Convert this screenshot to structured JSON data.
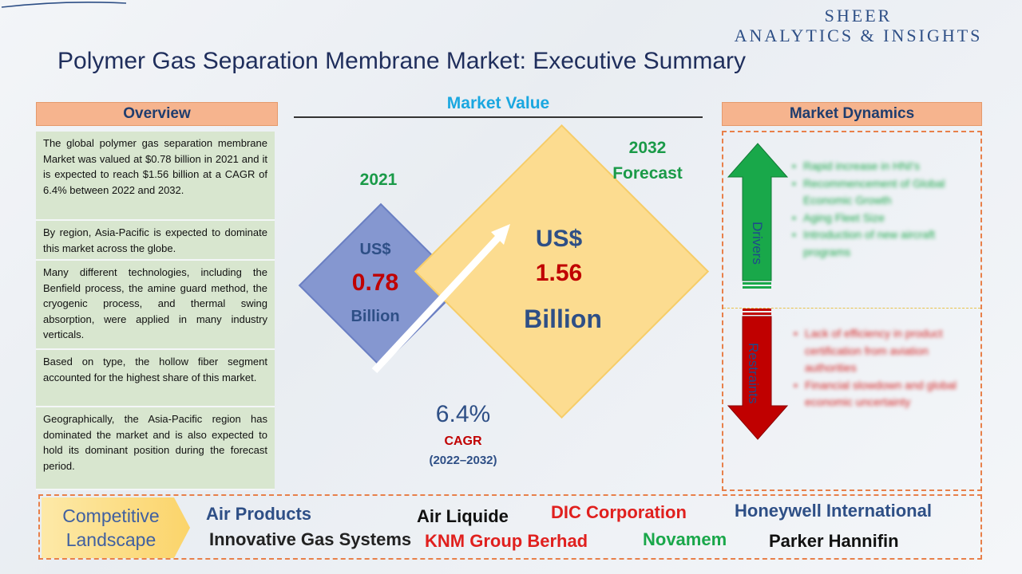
{
  "brand": {
    "line1": "SHEER",
    "line2": "ANALYTICS & INSIGHTS"
  },
  "title": "Polymer Gas Separation Membrane Market: Executive Summary",
  "overview": {
    "heading": "Overview",
    "items": [
      "The global polymer gas separation membrane Market was valued at $0.78 billion in 2021 and it is expected to reach $1.56 billion at a CAGR of 6.4% between 2022 and 2032.",
      "By region, Asia-Pacific is expected to dominate this market across the globe.",
      "Many different technologies, including the Benfield process, the amine guard method, the cryogenic process, and thermal swing absorption, were applied in many industry verticals.",
      "Based on type, the hollow fiber segment accounted for the highest share of this market.",
      "Geographically, the Asia-Pacific region has dominated the market and is also expected to hold its dominant position during the forecast period."
    ]
  },
  "market_value": {
    "heading": "Market Value",
    "base": {
      "year": "2021",
      "currency": "US$",
      "value": "0.78",
      "unit": "Billion"
    },
    "forecast": {
      "year": "2032",
      "label": "Forecast",
      "currency": "US$",
      "value": "1.56",
      "unit": "Billion"
    },
    "cagr": {
      "value": "6.4%",
      "label": "CAGR",
      "period": "(2022–2032)"
    }
  },
  "dynamics": {
    "heading": "Market Dynamics",
    "drivers_label": "Drivers",
    "restraints_label": "Restraints",
    "drivers": [
      "Rapid increase in HNI's",
      "Recommencement of Global Economic Growth",
      "Aging Fleet Size",
      "Introduction of new aircraft programs"
    ],
    "restraints": [
      "Lack of efficiency in product certification from aviation authorities",
      "Financial slowdown and global economic uncertainty"
    ],
    "colors": {
      "drivers": "#1aa74a",
      "restraints": "#c00000"
    }
  },
  "competitive": {
    "label_line1": "Competitive",
    "label_line2": "Landscape",
    "companies": [
      {
        "name": "Air Products",
        "color": "#2e4f86"
      },
      {
        "name": "Air Liquide",
        "color": "#111111"
      },
      {
        "name": "DIC Corporation",
        "color": "#e0201e"
      },
      {
        "name": "Honeywell International",
        "color": "#2e4f86"
      },
      {
        "name": "Innovative Gas Systems",
        "color": "#222222"
      },
      {
        "name": "KNM Group Berhad",
        "color": "#e0201e"
      },
      {
        "name": "Novamem",
        "color": "#1aa74a"
      },
      {
        "name": "Parker Hannifin",
        "color": "#111111"
      }
    ]
  }
}
